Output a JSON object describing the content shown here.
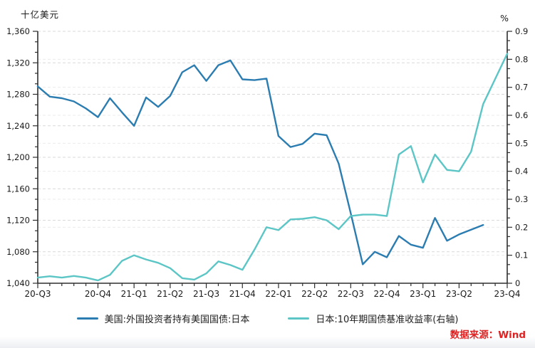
{
  "header": {
    "left_axis_title": "十亿美元",
    "right_axis_title": "%"
  },
  "legend": {
    "items": [
      {
        "label": "美国:外国投资者持有美国国债:日本",
        "color": "#2b7cb0"
      },
      {
        "label": "日本:10年期国债基准收益率(右轴)",
        "color": "#5cc5c5"
      }
    ]
  },
  "footer": {
    "source_label": "数据来源：Wind"
  },
  "chart_data": {
    "type": "line",
    "title": "",
    "x": [
      "2020-07",
      "2020-08",
      "2020-09",
      "2020-10",
      "2020-11",
      "2020-12",
      "2021-01",
      "2021-02",
      "2021-03",
      "2021-04",
      "2021-05",
      "2021-06",
      "2021-07",
      "2021-08",
      "2021-09",
      "2021-10",
      "2021-11",
      "2021-12",
      "2022-01",
      "2022-02",
      "2022-03",
      "2022-04",
      "2022-05",
      "2022-06",
      "2022-07",
      "2022-08",
      "2022-09",
      "2022-10",
      "2022-11",
      "2022-12",
      "2023-01",
      "2023-02",
      "2023-03",
      "2023-04",
      "2023-05",
      "2023-06",
      "2023-07",
      "2023-08",
      "2023-09",
      "2023-10"
    ],
    "x_tick_labels": [
      {
        "index": 0,
        "label": "20-Q3"
      },
      {
        "index": 5,
        "label": "20-Q4"
      },
      {
        "index": 8,
        "label": "21-Q1"
      },
      {
        "index": 11,
        "label": "21-Q2"
      },
      {
        "index": 14,
        "label": "21-Q3"
      },
      {
        "index": 17,
        "label": "21-Q4"
      },
      {
        "index": 20,
        "label": "22-Q1"
      },
      {
        "index": 23,
        "label": "22-Q2"
      },
      {
        "index": 26,
        "label": "22-Q3"
      },
      {
        "index": 29,
        "label": "22-Q4"
      },
      {
        "index": 32,
        "label": "23-Q1"
      },
      {
        "index": 35,
        "label": "23-Q2"
      },
      {
        "index": 39,
        "label": "23-Q4"
      }
    ],
    "series": [
      {
        "name": "美国:外国投资者持有美国国债:日本",
        "axis": "left",
        "color": "#2b7cb0",
        "values": [
          1290,
          1277,
          1275,
          1271,
          1262,
          1251,
          1275,
          1257,
          1240,
          1276,
          1264,
          1278,
          1308,
          1317,
          1297,
          1317,
          1323,
          1299,
          1298,
          1300,
          1227,
          1213,
          1217,
          1230,
          1228,
          1192,
          1129,
          1064,
          1080,
          1073,
          1100,
          1089,
          1085,
          1123,
          1094,
          1102,
          1108,
          1114
        ]
      },
      {
        "name": "日本:10年期国债基准收益率(右轴)",
        "axis": "right",
        "color": "#5cc5c5",
        "values": [
          0.02,
          0.025,
          0.02,
          0.026,
          0.02,
          0.01,
          0.03,
          0.08,
          0.1,
          0.085,
          0.073,
          0.054,
          0.018,
          0.013,
          0.035,
          0.078,
          0.065,
          0.048,
          0.12,
          0.2,
          0.19,
          0.228,
          0.23,
          0.236,
          0.225,
          0.193,
          0.24,
          0.245,
          0.245,
          0.24,
          0.46,
          0.49,
          0.36,
          0.46,
          0.405,
          0.4,
          0.47,
          0.64,
          0.73,
          0.82
        ]
      }
    ],
    "left_axis": {
      "title": "十亿美元",
      "min": 1040,
      "max": 1360,
      "major_step": 40,
      "minor_divisions": 3,
      "tick_labels": [
        "1,040",
        "1,080",
        "1,120",
        "1,160",
        "1,200",
        "1,240",
        "1,280",
        "1,320",
        "1,360"
      ]
    },
    "right_axis": {
      "title": "%",
      "min": 0,
      "max": 0.9,
      "major_step": 0.1,
      "minor_divisions": 3,
      "tick_labels": [
        "0",
        "0.1",
        "0.2",
        "0.3",
        "0.4",
        "0.5",
        "0.6",
        "0.7",
        "0.8",
        "0.9"
      ]
    },
    "grid": "dashed horizontal lines at major ticks of both axes",
    "legend_position": "bottom"
  }
}
